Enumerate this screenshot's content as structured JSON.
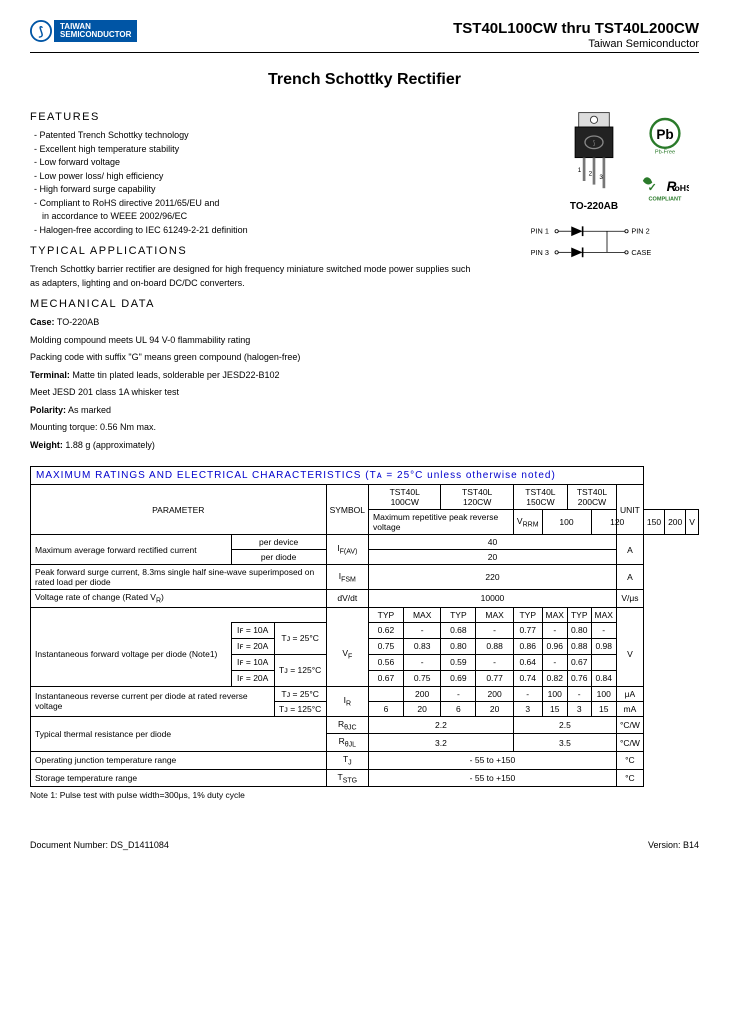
{
  "header": {
    "logo_line1": "TAIWAN",
    "logo_line2": "SEMICONDUCTOR",
    "product_title": "TST40L100CW thru TST40L200CW",
    "company_name": "Taiwan Semiconductor"
  },
  "main_title": "Trench Schottky Rectifier",
  "features": {
    "heading": "FEATURES",
    "items": [
      "Patented Trench Schottky technology",
      "Excellent high temperature stability",
      "Low forward voltage",
      "Low power loss/ high efficiency",
      "High forward surge capability",
      "Compliant to RoHS directive 2011/65/EU and",
      "in accordance to WEEE 2002/96/EC",
      "Halogen-free according to IEC 61249-2-21 definition"
    ],
    "indent_indices": [
      6
    ]
  },
  "applications": {
    "heading": "TYPICAL APPLICATIONS",
    "text": "Trench Schottky barrier rectifier are designed for high frequency miniature switched mode power supplies such as adapters, lighting and on-board DC/DC converters."
  },
  "mechanical": {
    "heading": "MECHANICAL DATA",
    "lines": [
      {
        "b": "Case:",
        "t": " TO-220AB"
      },
      {
        "b": "",
        "t": "Molding compound meets UL 94 V-0 flammability rating"
      },
      {
        "b": "",
        "t": "Packing code with suffix \"G\" means green compound (halogen-free)"
      },
      {
        "b": "Terminal:",
        "t": " Matte tin plated leads, solderable per JESD22-B102"
      },
      {
        "b": "",
        "t": "Meet JESD 201 class 1A whisker test"
      },
      {
        "b": "Polarity:",
        "t": " As marked"
      },
      {
        "b": "",
        "t": "Mounting torque: 0.56 Nm max."
      },
      {
        "b": "Weight:",
        "t": " 1.88 g (approximately)"
      }
    ]
  },
  "package_label": "TO-220AB",
  "schematic_labels": {
    "pin1": "PIN 1",
    "pin2": "PIN 2",
    "pin3": "PIN 3",
    "case": "CASE"
  },
  "pb_text": "Pb-Free",
  "rohs_text1": "RoHS",
  "rohs_text2": "COMPLIANT",
  "table": {
    "title": "MAXIMUM RATINGS AND ELECTRICAL CHARACTERISTICS (Tᴀ = 25°C unless otherwise noted)",
    "headers": {
      "parameter": "PARAMETER",
      "symbol": "SYMBOL",
      "parts": [
        "TST40L\n100CW",
        "TST40L\n120CW",
        "TST40L\n150CW",
        "TST40L\n200CW"
      ],
      "unit": "UNIT"
    },
    "rows": {
      "vrrm": {
        "param": "Maximum repetitive peak reverse voltage",
        "sym": "V",
        "sub": "RRM",
        "vals": [
          "100",
          "120",
          "150",
          "200"
        ],
        "unit": "V"
      },
      "ifav": {
        "param1": "Maximum average forward rectified current",
        "c1": "per device",
        "c2": "per diode",
        "sym": "I",
        "sub": "F(AV)",
        "v1": "40",
        "v2": "20",
        "unit": "A"
      },
      "ifsm": {
        "param": "Peak forward surge current, 8.3ms single half sine-wave superimposed on rated load per diode",
        "sym": "I",
        "sub": "FSM",
        "v": "220",
        "unit": "A"
      },
      "dvdt": {
        "param": "Voltage rate of change (Rated V",
        "sub": "R",
        "p2": ")",
        "sym": "dV/dt",
        "v": "10000",
        "unit": "V/μs"
      },
      "typmax": {
        "typ": "TYP",
        "max": "MAX"
      },
      "vf": {
        "param": "Instantaneous forward voltage per diode (Note1)",
        "conds": [
          "Iꜰ = 10A",
          "Iꜰ = 20A",
          "Iꜰ = 10A",
          "Iꜰ = 20A"
        ],
        "temps": [
          "Tᴊ = 25°C",
          "Tᴊ = 125°C"
        ],
        "sym": "V",
        "sub": "F",
        "rows": [
          [
            "0.62",
            "-",
            "0.68",
            "-",
            "0.77",
            "-",
            "0.80",
            "-"
          ],
          [
            "0.75",
            "0.83",
            "0.80",
            "0.88",
            "0.86",
            "0.96",
            "0.88",
            "0.98"
          ],
          [
            "0.56",
            "-",
            "0.59",
            "-",
            "0.64",
            "-",
            "0.67",
            ""
          ],
          [
            "0.67",
            "0.75",
            "0.69",
            "0.77",
            "0.74",
            "0.82",
            "0.76",
            "0.84"
          ]
        ],
        "unit": "V"
      },
      "ir": {
        "param": "Instantaneous reverse current  per diode at rated reverse voltage",
        "temps": [
          "Tᴊ = 25°C",
          "Tᴊ = 125°C"
        ],
        "sym": "I",
        "sub": "R",
        "rows": [
          [
            "",
            "200",
            "-",
            "200",
            "-",
            "100",
            "-",
            "100"
          ],
          [
            "6",
            "20",
            "6",
            "20",
            "3",
            "15",
            "3",
            "15"
          ]
        ],
        "units": [
          "μA",
          "mA"
        ]
      },
      "rth": {
        "param": "Typical thermal resistance per diode",
        "sym1": "R",
        "sub1": "θJC",
        "sym2": "R",
        "sub2": "θJL",
        "v1a": "2.2",
        "v1b": "2.5",
        "v2a": "3.2",
        "v2b": "3.5",
        "unit": "°C/W"
      },
      "tj": {
        "param": "Operating junction temperature range",
        "sym": "T",
        "sub": "J",
        "v": "- 55 to +150",
        "unit": "°C"
      },
      "tstg": {
        "param": "Storage temperature range",
        "sym": "T",
        "sub": "STG",
        "v": "- 55 to +150",
        "unit": "°C"
      }
    }
  },
  "note1": "Note 1: Pulse test with pulse width=300μs, 1% duty cycle",
  "footer": {
    "doc": "Document Number: DS_D1411084",
    "ver": "Version: B14"
  }
}
